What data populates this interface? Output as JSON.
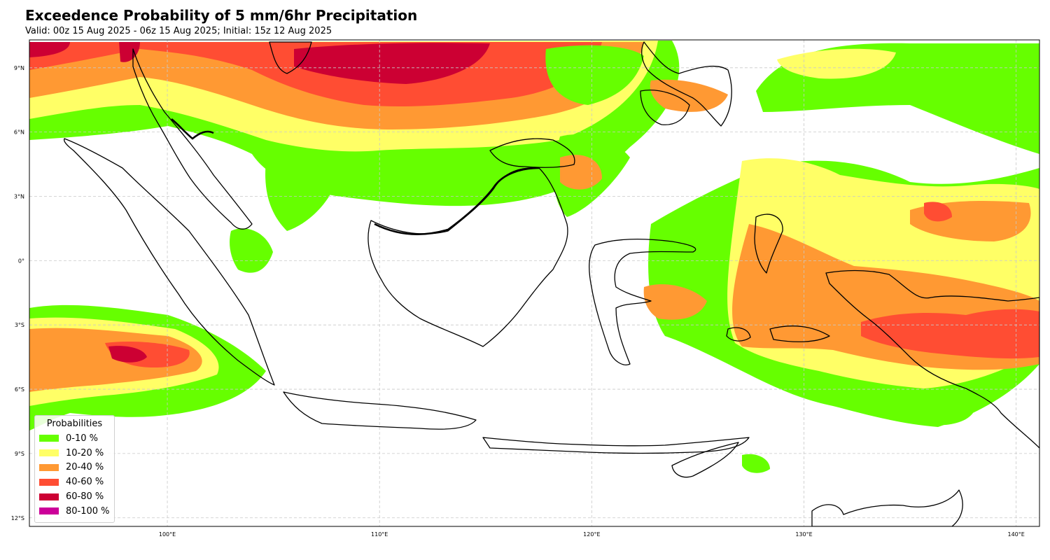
{
  "title": "Exceedence Probability of 5 mm/6hr Precipitation",
  "subtitle": "Valid: 00z 15 Aug 2025 - 06z 15 Aug 2025; Initial: 15z 12 Aug 2025",
  "map": {
    "region": "Indonesia / Maritime Continent",
    "lon_range": [
      93.5,
      141.1
    ],
    "lat_range": [
      -12.4,
      10.3
    ],
    "grid": true,
    "xticks": [
      {
        "value": 100,
        "label": "100°E"
      },
      {
        "value": 110,
        "label": "110°E"
      },
      {
        "value": 120,
        "label": "120°E"
      },
      {
        "value": 130,
        "label": "130°E"
      },
      {
        "value": 140,
        "label": "140°E"
      }
    ],
    "yticks": [
      {
        "value": 9,
        "label": "9°N"
      },
      {
        "value": 6,
        "label": "6°N"
      },
      {
        "value": 3,
        "label": "3°N"
      },
      {
        "value": 0,
        "label": "0°"
      },
      {
        "value": -3,
        "label": "3°S"
      },
      {
        "value": -6,
        "label": "6°S"
      },
      {
        "value": -9,
        "label": "9°S"
      },
      {
        "value": -12,
        "label": "12°S"
      }
    ]
  },
  "legend": {
    "title": "Probabilities",
    "placement": "lower-left",
    "items": [
      {
        "label": "0-10 %",
        "color": "#66ff00"
      },
      {
        "label": "10-20 %",
        "color": "#ffff66"
      },
      {
        "label": "20-40 %",
        "color": "#ff9933"
      },
      {
        "label": "40-60 %",
        "color": "#ff4d33"
      },
      {
        "label": "60-80 %",
        "color": "#cc0033"
      },
      {
        "label": "80-100 %",
        "color": "#cc0099"
      }
    ]
  }
}
